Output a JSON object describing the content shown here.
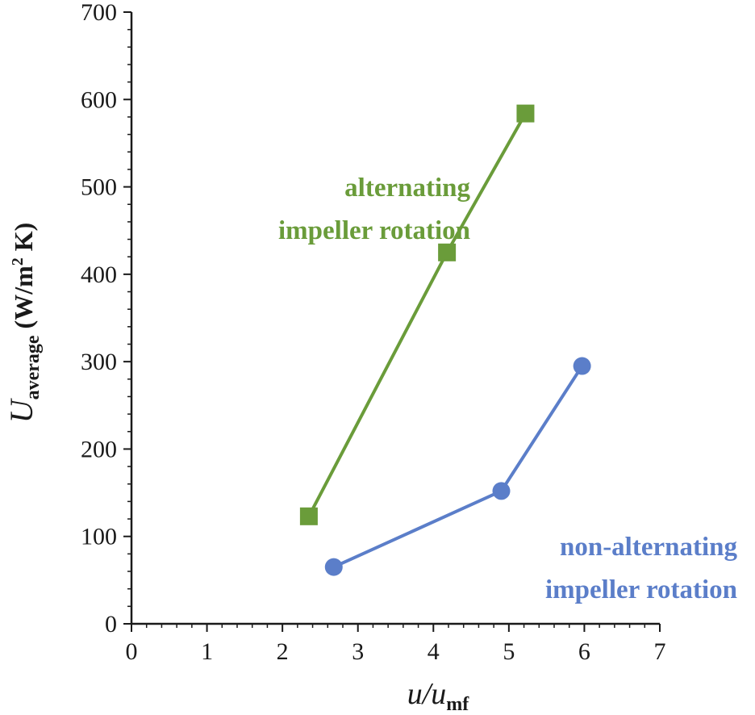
{
  "chart_data": {
    "type": "line",
    "xlabel": {
      "main": "u/u",
      "sub": "mf"
    },
    "ylabel": {
      "main": "U",
      "sub": "average",
      "units_pre": " (W/m",
      "units_sup": "2",
      "units_post": " K)"
    },
    "xlim": [
      0,
      7
    ],
    "ylim": [
      0,
      700
    ],
    "xticks": [
      "0",
      "1",
      "2",
      "3",
      "4",
      "5",
      "6",
      "7"
    ],
    "yticks": [
      "0",
      "100",
      "200",
      "300",
      "400",
      "500",
      "600",
      "700"
    ],
    "grid": false,
    "series": [
      {
        "marker": "square",
        "color": "#6a9c3a",
        "x": [
          2.35,
          4.18,
          5.22
        ],
        "y": [
          123,
          425,
          584
        ]
      },
      {
        "marker": "circle",
        "color": "#5b7ec9",
        "x": [
          2.68,
          4.9,
          5.97
        ],
        "y": [
          65,
          152,
          295
        ]
      }
    ],
    "annotations": [
      {
        "lines": [
          "alternating",
          "impeller rotation"
        ],
        "color": "#6a9c3a"
      },
      {
        "lines": [
          "non-alternating",
          "impeller rotation"
        ],
        "color": "#5b7ec9"
      }
    ]
  }
}
